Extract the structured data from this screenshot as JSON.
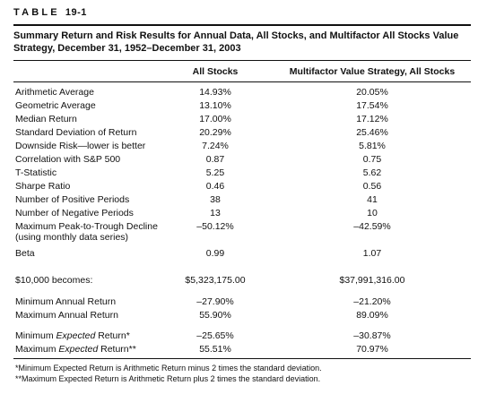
{
  "table_label": {
    "prefix": "TABLE",
    "number": "19-1"
  },
  "title": "Summary Return and Risk Results for Annual Data, All Stocks, and Multifactor All Stocks Value Strategy, December 31, 1952–December 31, 2003",
  "columns": {
    "all_stocks": "All Stocks",
    "multifactor": "Multifactor Value Strategy, All Stocks"
  },
  "rows": [
    {
      "label": "Arithmetic Average",
      "all_stocks": "14.93%",
      "multifactor": "20.05%"
    },
    {
      "label": "Geometric Average",
      "all_stocks": "13.10%",
      "multifactor": "17.54%"
    },
    {
      "label": "Median Return",
      "all_stocks": "17.00%",
      "multifactor": "17.12%"
    },
    {
      "label": "Standard Deviation of Return",
      "all_stocks": "20.29%",
      "multifactor": "25.46%"
    },
    {
      "label": "Downside Risk—lower is better",
      "all_stocks": "7.24%",
      "multifactor": "5.81%"
    },
    {
      "label": "Correlation with S&P 500",
      "all_stocks": "0.87",
      "multifactor": "0.75"
    },
    {
      "label": "T-Statistic",
      "all_stocks": "5.25",
      "multifactor": "5.62"
    },
    {
      "label": "Sharpe Ratio",
      "all_stocks": "0.46",
      "multifactor": "0.56"
    },
    {
      "label": "Number of Positive Periods",
      "all_stocks": "38",
      "multifactor": "41"
    },
    {
      "label": "Number of Negative Periods",
      "all_stocks": "13",
      "multifactor": "10"
    },
    {
      "label": "Maximum Peak-to-Trough Decline",
      "label_line2": "(using monthly data series)",
      "all_stocks": "–50.12%",
      "multifactor": "–42.59%"
    },
    {
      "label": "Beta",
      "all_stocks": "0.99",
      "multifactor": "1.07"
    }
  ],
  "ten_thousand": {
    "label": "$10,000 becomes:",
    "all_stocks": "$5,323,175.00",
    "multifactor": "$37,991,316.00"
  },
  "annual": [
    {
      "label": "Minimum Annual Return",
      "all_stocks": "–27.90%",
      "multifactor": "–21.20%"
    },
    {
      "label": "Maximum Annual Return",
      "all_stocks": "55.90%",
      "multifactor": "89.09%"
    }
  ],
  "expected": [
    {
      "label_pre": "Minimum ",
      "label_em": "Expected",
      "label_post": " Return*",
      "all_stocks": "–25.65%",
      "multifactor": "–30.87%"
    },
    {
      "label_pre": "Maximum ",
      "label_em": "Expected",
      "label_post": " Return**",
      "all_stocks": "55.51%",
      "multifactor": "70.97%"
    }
  ],
  "notes": [
    "*Minimum Expected Return is Arithmetic Return minus 2 times the standard deviation.",
    "**Maximum Expected Return is Arithmetic Return plus 2 times the standard deviation."
  ]
}
